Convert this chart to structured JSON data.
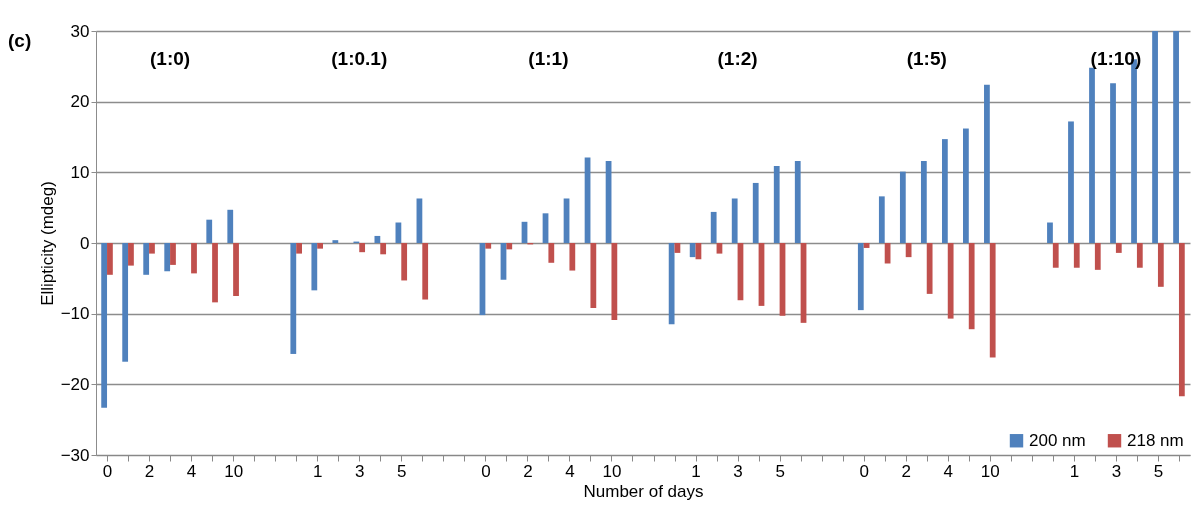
{
  "chart_data": {
    "type": "bar",
    "xlabel": "Number of days",
    "ylabel": "Ellipticity (mdeg)",
    "categories": [
      "0",
      null,
      "2",
      null,
      "4",
      null,
      "10",
      null,
      null,
      null,
      "1",
      null,
      "3",
      null,
      "5",
      null,
      null,
      null,
      "0",
      null,
      "2",
      null,
      "4",
      null,
      "10",
      null,
      null,
      null,
      "1",
      null,
      "3",
      null,
      "5",
      null,
      null,
      null,
      "0",
      null,
      "2",
      null,
      "4",
      null,
      "10",
      null,
      null,
      null,
      "1",
      null,
      "3",
      null,
      "5",
      null
    ],
    "series": [
      {
        "name": "200 nm",
        "color": "#4f81bd",
        "values": [
          -23.3,
          -16.8,
          -4.5,
          -4.0,
          0,
          3.3,
          4.7,
          null,
          null,
          -15.7,
          -6.7,
          0.4,
          0.2,
          1.0,
          2.9,
          6.3,
          null,
          null,
          -10.2,
          -5.2,
          3.0,
          4.2,
          6.3,
          12.1,
          11.6,
          null,
          null,
          -11.5,
          -2.0,
          4.4,
          6.3,
          8.5,
          10.9,
          11.6,
          null,
          null,
          -9.5,
          6.6,
          10.1,
          11.6,
          14.7,
          16.2,
          22.4,
          null,
          null,
          2.9,
          17.2,
          24.8,
          22.6,
          26.0,
          30,
          30
        ]
      },
      {
        "name": "218 nm",
        "color": "#c0504d",
        "values": [
          -4.5,
          -3.2,
          -1.5,
          -3.1,
          -4.3,
          -8.4,
          -7.5,
          null,
          null,
          -1.5,
          -0.8,
          0,
          -1.3,
          -1.6,
          -5.3,
          -8.0,
          null,
          null,
          -0.8,
          -0.9,
          -0.2,
          -2.8,
          -3.9,
          -9.2,
          -10.9,
          null,
          null,
          -1.4,
          -2.3,
          -1.5,
          -8.1,
          -8.9,
          -10.3,
          -11.3,
          null,
          null,
          -0.7,
          -2.9,
          -2.0,
          -7.2,
          -10.7,
          -12.2,
          -16.2,
          null,
          null,
          -3.5,
          -3.5,
          -3.8,
          -1.4,
          -3.5,
          -6.2,
          -21.7
        ]
      }
    ],
    "ylim": [
      -30,
      30
    ],
    "yticks": [
      -30,
      -20,
      -10,
      0,
      10,
      20,
      30
    ],
    "grid": "y",
    "legend": "bottom right",
    "annotations": [
      "(c)",
      "(1:0)",
      "(1:0.1)",
      "(1:1)",
      "(1:2)",
      "(1:5)",
      "(1:10)"
    ]
  }
}
